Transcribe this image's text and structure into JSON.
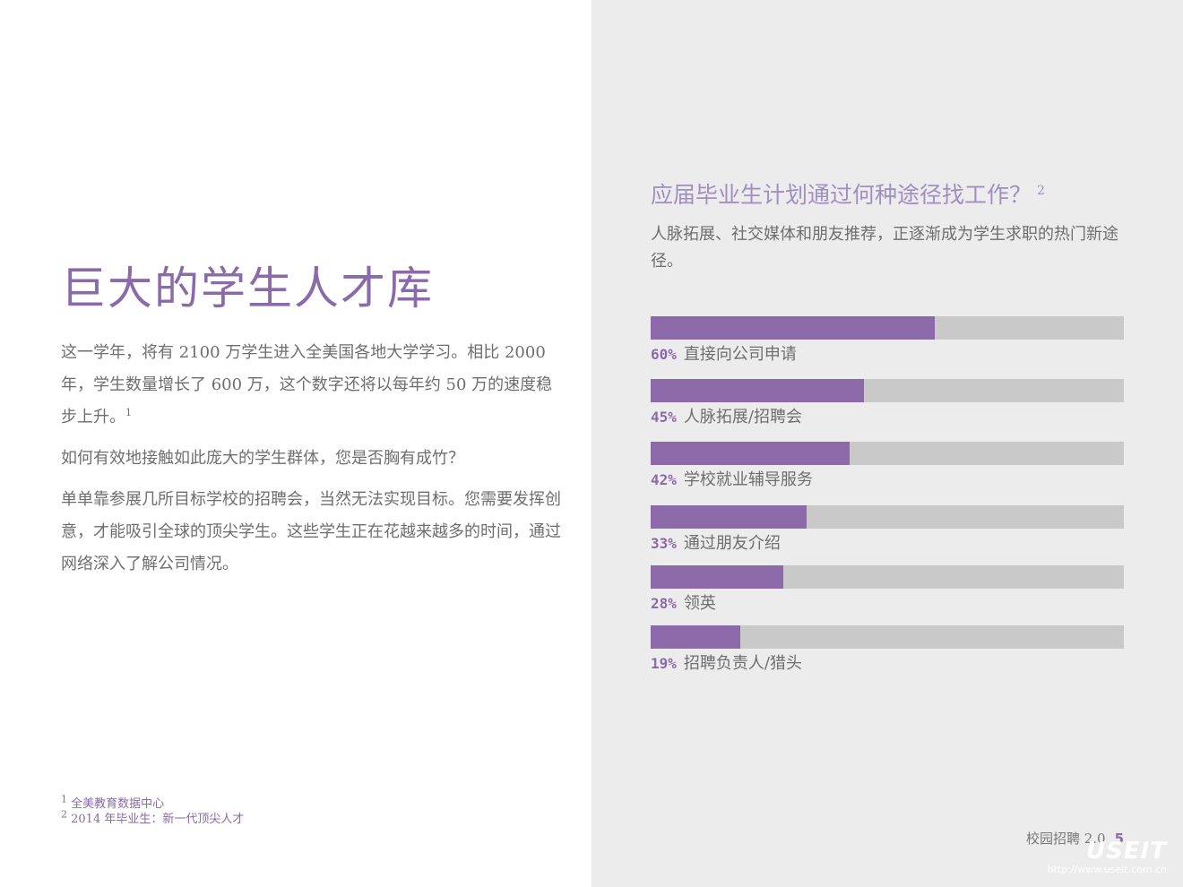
{
  "left": {
    "title": "巨大的学生人才库",
    "paragraphs": [
      {
        "text": "这一学年，将有 2100 万学生进入全美国各地大学学习。相比 2000 年，学生数量增长了 600 万，这个数字还将以每年约 50 万的速度稳步上升。",
        "ref": "1"
      },
      {
        "text": "如何有效地接触如此庞大的学生群体，您是否胸有成竹？",
        "ref": ""
      },
      {
        "text": "单单靠参展几所目标学校的招聘会，当然无法实现目标。您需要发挥创意，才能吸引全球的顶尖学生。这些学生正在花越来越多的时间，通过网络深入了解公司情况。",
        "ref": ""
      }
    ],
    "footnotes": [
      {
        "num": "1",
        "text": "全美教育数据中心"
      },
      {
        "num": "2",
        "text": "2014 年毕业生：新一代顶尖人才"
      }
    ]
  },
  "chart_data": {
    "type": "bar",
    "orientation": "horizontal",
    "title": "应届毕业生计划通过何种途径找工作？",
    "title_ref": "2",
    "subtitle": "人脉拓展、社交媒体和朋友推荐，正逐渐成为学生求职的热门新途径。",
    "categories": [
      "直接向公司申请",
      "人脉拓展/招聘会",
      "学校就业辅导服务",
      "通过朋友介绍",
      "领英",
      "招聘负责人/猎头"
    ],
    "values": [
      60,
      45,
      42,
      33,
      28,
      19
    ],
    "value_labels": [
      "60%",
      "45%",
      "42%",
      "33%",
      "28%",
      "19%"
    ],
    "xlim": [
      0,
      100
    ],
    "unit": "%",
    "grid": false,
    "bar_color": "#8c6aa9",
    "track_color": "#c9c9c9"
  },
  "footer": {
    "label": "校园招聘 2.0",
    "page_number": "5"
  },
  "watermark": {
    "logo": "USEIT",
    "url": "http://www.useit.com.cn"
  }
}
